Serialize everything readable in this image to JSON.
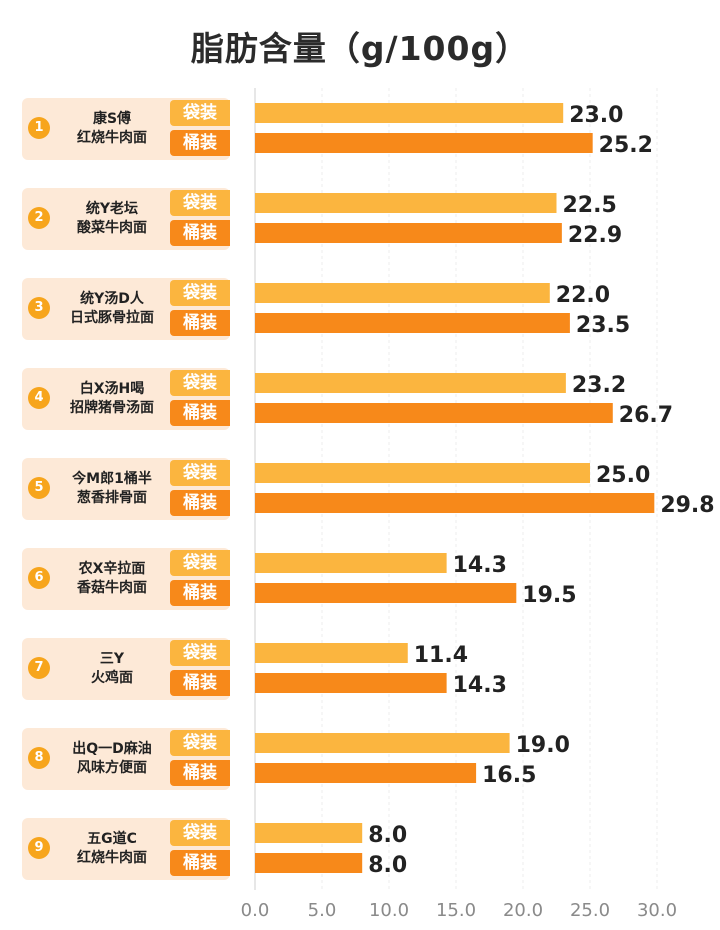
{
  "chart_data": {
    "type": "bar",
    "orientation": "horizontal",
    "title": "脂肪含量（g/100g）",
    "xlim": [
      0,
      30
    ],
    "xticks": [
      "0.0",
      "5.0",
      "10.0",
      "15.0",
      "20.0",
      "25.0",
      "30.0"
    ],
    "grid": true,
    "categories": [
      {
        "index": "1",
        "line1": "康S傅",
        "line2": "红烧牛肉面"
      },
      {
        "index": "2",
        "line1": "统Y老坛",
        "line2": "酸菜牛肉面"
      },
      {
        "index": "3",
        "line1": "统Y汤D人",
        "line2": "日式豚骨拉面"
      },
      {
        "index": "4",
        "line1": "白X汤H喝",
        "line2": "招牌猪骨汤面"
      },
      {
        "index": "5",
        "line1": "今M郎1桶半",
        "line2": "葱香排骨面"
      },
      {
        "index": "6",
        "line1": "农X辛拉面",
        "line2": "香菇牛肉面"
      },
      {
        "index": "7",
        "line1": "三Y",
        "line2": "火鸡面"
      },
      {
        "index": "8",
        "line1": "出Q一D麻油",
        "line2": "风味方便面"
      },
      {
        "index": "9",
        "line1": "五G道C",
        "line2": "红烧牛肉面"
      }
    ],
    "series": [
      {
        "name": "袋装",
        "color": "#fbb53f",
        "values": [
          23.0,
          22.5,
          22.0,
          23.2,
          25.0,
          14.3,
          11.4,
          19.0,
          8.0
        ]
      },
      {
        "name": "桶装",
        "color": "#f7891a",
        "values": [
          25.2,
          22.9,
          23.5,
          26.7,
          29.8,
          19.5,
          14.3,
          16.5,
          8.0
        ]
      }
    ]
  }
}
